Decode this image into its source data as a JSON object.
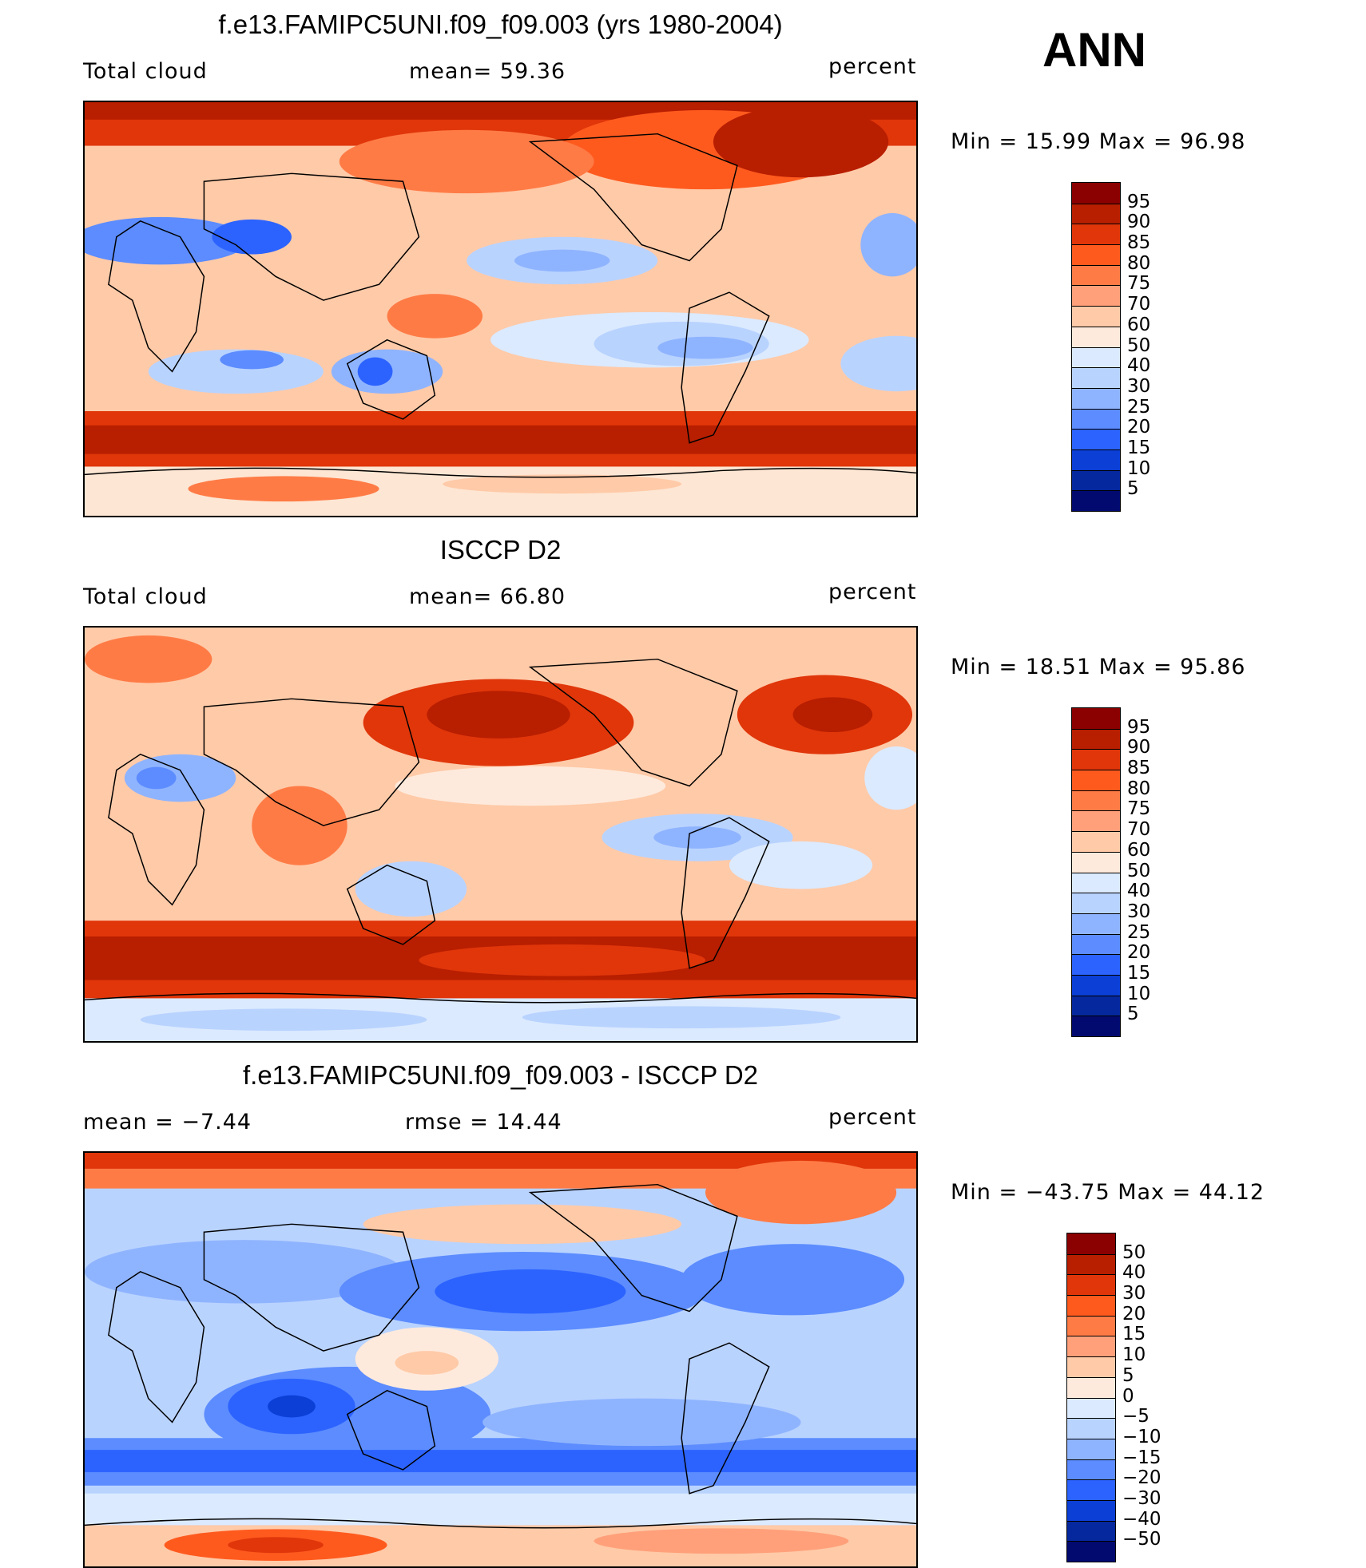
{
  "season": "ANN",
  "panels": [
    {
      "title": "f.e13.FAMIPC5UNI.f09_f09.003 (yrs 1980-2004)",
      "left_label": "Total cloud",
      "center_label": "mean=   59.36",
      "units": "percent",
      "minmax": "Min =   15.99  Max =   96.98",
      "colorbar": {
        "ticks": [
          "95",
          "90",
          "85",
          "80",
          "75",
          "70",
          "60",
          "50",
          "40",
          "30",
          "25",
          "20",
          "15",
          "10",
          "5"
        ],
        "colors": [
          "#8b0000",
          "#b81e00",
          "#e0360a",
          "#ff5a1e",
          "#ff7b46",
          "#ffa07a",
          "#ffcaa8",
          "#feeadc",
          "#dbeaff",
          "#b9d3ff",
          "#8fb4ff",
          "#5c8cff",
          "#2c63ff",
          "#0b3fd6",
          "#06289e",
          "#020a70"
        ]
      }
    },
    {
      "title": "ISCCP D2",
      "left_label": "Total cloud",
      "center_label": "mean=   66.80",
      "units": "percent",
      "minmax": "Min =   18.51  Max =   95.86",
      "colorbar": {
        "ticks": [
          "95",
          "90",
          "85",
          "80",
          "75",
          "70",
          "60",
          "50",
          "40",
          "30",
          "25",
          "20",
          "15",
          "10",
          "5"
        ],
        "colors": [
          "#8b0000",
          "#b81e00",
          "#e0360a",
          "#ff5a1e",
          "#ff7b46",
          "#ffa07a",
          "#ffcaa8",
          "#feeadc",
          "#dbeaff",
          "#b9d3ff",
          "#8fb4ff",
          "#5c8cff",
          "#2c63ff",
          "#0b3fd6",
          "#06289e",
          "#020a70"
        ]
      }
    },
    {
      "title": "f.e13.FAMIPC5UNI.f09_f09.003 - ISCCP D2",
      "left_label": "mean =   −7.44",
      "center_label": "rmse =   14.44",
      "units": "percent",
      "minmax": "Min = −43.75  Max =   44.12",
      "colorbar": {
        "ticks": [
          "50",
          "40",
          "30",
          "20",
          "15",
          "10",
          "5",
          "0",
          "−5",
          "−10",
          "−15",
          "−20",
          "−30",
          "−40",
          "−50"
        ],
        "colors": [
          "#8b0000",
          "#b81e00",
          "#e0360a",
          "#ff5a1e",
          "#ff7b46",
          "#ffa07a",
          "#ffcaa8",
          "#feeadc",
          "#dbeaff",
          "#b9d3ff",
          "#8fb4ff",
          "#5c8cff",
          "#2c63ff",
          "#0b3fd6",
          "#06289e",
          "#020a70"
        ]
      }
    }
  ]
}
